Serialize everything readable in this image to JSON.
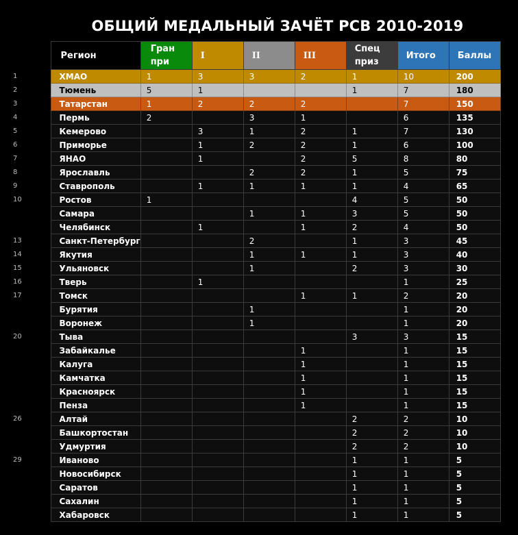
{
  "title": "ОБЩИЙ МЕДАЛЬНЫЙ ЗАЧЁТ РСВ 2010-2019",
  "headers": {
    "region": "Регион",
    "gp_line1": "Гран",
    "gp_line2": "при",
    "first": "I",
    "second": "II",
    "third": "III",
    "special_line1": "Спец",
    "special_line2": "приз",
    "total": "Итого",
    "points": "Баллы"
  },
  "colors": {
    "gold": "#c08a00",
    "silver": "#bfbfbf",
    "bronze": "#c85a12",
    "green": "#0a8a0a",
    "blue": "#2d75b7"
  },
  "rows": [
    {
      "rank": "1",
      "region": "ХМАО",
      "gp": "1",
      "i": "3",
      "ii": "3",
      "iii": "2",
      "sp": "1",
      "total": "10",
      "points": "200"
    },
    {
      "rank": "2",
      "region": "Тюмень",
      "gp": "5",
      "i": "1",
      "ii": "",
      "iii": "",
      "sp": "1",
      "total": "7",
      "points": "180"
    },
    {
      "rank": "3",
      "region": "Татарстан",
      "gp": "1",
      "i": "2",
      "ii": "2",
      "iii": "2",
      "sp": "",
      "total": "7",
      "points": "150"
    },
    {
      "rank": "4",
      "region": "Пермь",
      "gp": "2",
      "i": "",
      "ii": "3",
      "iii": "1",
      "sp": "",
      "total": "6",
      "points": "135"
    },
    {
      "rank": "5",
      "region": "Кемерово",
      "gp": "",
      "i": "3",
      "ii": "1",
      "iii": "2",
      "sp": "1",
      "total": "7",
      "points": "130"
    },
    {
      "rank": "6",
      "region": "Приморье",
      "gp": "",
      "i": "1",
      "ii": "2",
      "iii": "2",
      "sp": "1",
      "total": "6",
      "points": "100"
    },
    {
      "rank": "7",
      "region": "ЯНАО",
      "gp": "",
      "i": "1",
      "ii": "",
      "iii": "2",
      "sp": "5",
      "total": "8",
      "points": "80"
    },
    {
      "rank": "8",
      "region": "Ярославль",
      "gp": "",
      "i": "",
      "ii": "2",
      "iii": "2",
      "sp": "1",
      "total": "5",
      "points": "75"
    },
    {
      "rank": "9",
      "region": "Ставрополь",
      "gp": "",
      "i": "1",
      "ii": "1",
      "iii": "1",
      "sp": "1",
      "total": "4",
      "points": "65"
    },
    {
      "rank": "10",
      "region": "Ростов",
      "gp": "1",
      "i": "",
      "ii": "",
      "iii": "",
      "sp": "4",
      "total": "5",
      "points": "50"
    },
    {
      "rank": "",
      "region": "Самара",
      "gp": "",
      "i": "",
      "ii": "1",
      "iii": "1",
      "sp": "3",
      "total": "5",
      "points": "50"
    },
    {
      "rank": "",
      "region": "Челябинск",
      "gp": "",
      "i": "1",
      "ii": "",
      "iii": "1",
      "sp": "2",
      "total": "4",
      "points": "50"
    },
    {
      "rank": "13",
      "region": "Санкт-Петербург",
      "gp": "",
      "i": "",
      "ii": "2",
      "iii": "",
      "sp": "1",
      "total": "3",
      "points": "45"
    },
    {
      "rank": "14",
      "region": "Якутия",
      "gp": "",
      "i": "",
      "ii": "1",
      "iii": "1",
      "sp": "1",
      "total": "3",
      "points": "40"
    },
    {
      "rank": "15",
      "region": "Ульяновск",
      "gp": "",
      "i": "",
      "ii": "1",
      "iii": "",
      "sp": "2",
      "total": "3",
      "points": "30"
    },
    {
      "rank": "16",
      "region": "Тверь",
      "gp": "",
      "i": "1",
      "ii": "",
      "iii": "",
      "sp": "",
      "total": "1",
      "points": "25"
    },
    {
      "rank": "17",
      "region": "Томск",
      "gp": "",
      "i": "",
      "ii": "",
      "iii": "1",
      "sp": "1",
      "total": "2",
      "points": "20"
    },
    {
      "rank": "",
      "region": "Бурятия",
      "gp": "",
      "i": "",
      "ii": "1",
      "iii": "",
      "sp": "",
      "total": "1",
      "points": "20"
    },
    {
      "rank": "",
      "region": "Воронеж",
      "gp": "",
      "i": "",
      "ii": "1",
      "iii": "",
      "sp": "",
      "total": "1",
      "points": "20"
    },
    {
      "rank": "20",
      "region": "Тыва",
      "gp": "",
      "i": "",
      "ii": "",
      "iii": "",
      "sp": "3",
      "total": "3",
      "points": "15"
    },
    {
      "rank": "",
      "region": "Забайкалье",
      "gp": "",
      "i": "",
      "ii": "",
      "iii": "1",
      "sp": "",
      "total": "1",
      "points": "15"
    },
    {
      "rank": "",
      "region": "Калуга",
      "gp": "",
      "i": "",
      "ii": "",
      "iii": "1",
      "sp": "",
      "total": "1",
      "points": "15"
    },
    {
      "rank": "",
      "region": "Камчатка",
      "gp": "",
      "i": "",
      "ii": "",
      "iii": "1",
      "sp": "",
      "total": "1",
      "points": "15"
    },
    {
      "rank": "",
      "region": "Красноярск",
      "gp": "",
      "i": "",
      "ii": "",
      "iii": "1",
      "sp": "",
      "total": "1",
      "points": "15"
    },
    {
      "rank": "",
      "region": "Пенза",
      "gp": "",
      "i": "",
      "ii": "",
      "iii": "1",
      "sp": "",
      "total": "1",
      "points": "15"
    },
    {
      "rank": "26",
      "region": "Алтай",
      "gp": "",
      "i": "",
      "ii": "",
      "iii": "",
      "sp": "2",
      "total": "2",
      "points": "10"
    },
    {
      "rank": "",
      "region": "Башкортостан",
      "gp": "",
      "i": "",
      "ii": "",
      "iii": "",
      "sp": "2",
      "total": "2",
      "points": "10"
    },
    {
      "rank": "",
      "region": "Удмуртия",
      "gp": "",
      "i": "",
      "ii": "",
      "iii": "",
      "sp": "2",
      "total": "2",
      "points": "10"
    },
    {
      "rank": "29",
      "region": "Иваново",
      "gp": "",
      "i": "",
      "ii": "",
      "iii": "",
      "sp": "1",
      "total": "1",
      "points": "5"
    },
    {
      "rank": "",
      "region": "Новосибирск",
      "gp": "",
      "i": "",
      "ii": "",
      "iii": "",
      "sp": "1",
      "total": "1",
      "points": "5"
    },
    {
      "rank": "",
      "region": "Саратов",
      "gp": "",
      "i": "",
      "ii": "",
      "iii": "",
      "sp": "1",
      "total": "1",
      "points": "5"
    },
    {
      "rank": "",
      "region": "Сахалин",
      "gp": "",
      "i": "",
      "ii": "",
      "iii": "",
      "sp": "1",
      "total": "1",
      "points": "5"
    },
    {
      "rank": "",
      "region": "Хабаровск",
      "gp": "",
      "i": "",
      "ii": "",
      "iii": "",
      "sp": "1",
      "total": "1",
      "points": "5"
    }
  ]
}
